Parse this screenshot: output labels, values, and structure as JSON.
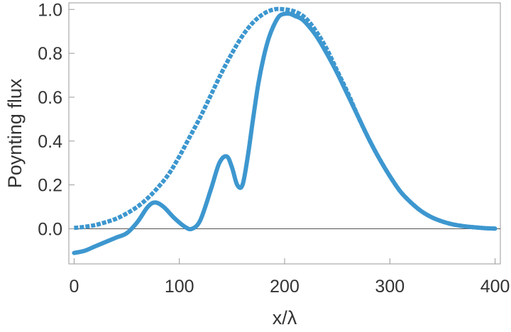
{
  "chart_data": {
    "type": "line",
    "title": "",
    "xlabel": "x/λ",
    "ylabel": "Poynting flux",
    "xlim": [
      -5,
      405
    ],
    "ylim": [
      -0.16,
      1.03
    ],
    "grid": false,
    "x_ticks": [
      0,
      100,
      200,
      300,
      400
    ],
    "x_tick_labels": [
      "0",
      "100",
      "200",
      "300",
      "400"
    ],
    "y_ticks": [
      0.0,
      0.2,
      0.4,
      0.6,
      0.8,
      1.0
    ],
    "y_tick_labels": [
      "0.0",
      "0.2",
      "0.4",
      "0.6",
      "0.8",
      "1.0"
    ],
    "color": "#3d97cf",
    "zero_line_color": "#555555",
    "series": [
      {
        "style": "dashed",
        "x": [
          0,
          10,
          20,
          30,
          40,
          50,
          60,
          70,
          80,
          90,
          100,
          110,
          120,
          130,
          140,
          150,
          160,
          170,
          180,
          190,
          200,
          210,
          220,
          230,
          240,
          250,
          260,
          270,
          280,
          290,
          300,
          310,
          320,
          330,
          340,
          350,
          360,
          370,
          380,
          390,
          400
        ],
        "y": [
          0.004,
          0.009,
          0.017,
          0.03,
          0.046,
          0.07,
          0.1,
          0.14,
          0.19,
          0.25,
          0.33,
          0.42,
          0.51,
          0.61,
          0.71,
          0.8,
          0.88,
          0.94,
          0.98,
          1.0,
          1.0,
          0.99,
          0.96,
          0.9,
          0.82,
          0.72,
          0.62,
          0.51,
          0.41,
          0.32,
          0.24,
          0.17,
          0.12,
          0.08,
          0.052,
          0.033,
          0.02,
          0.012,
          0.007,
          0.003,
          0.001
        ]
      },
      {
        "style": "solid",
        "x": [
          0,
          10,
          20,
          30,
          40,
          50,
          60,
          70,
          77,
          85,
          95,
          105,
          112,
          120,
          130,
          138,
          145,
          150,
          155,
          160,
          165,
          170,
          175,
          180,
          185,
          190,
          195,
          200,
          205,
          210,
          215,
          220,
          230,
          240,
          250,
          260,
          270,
          280,
          290,
          300,
          310,
          320,
          330,
          340,
          350,
          360,
          370,
          380,
          390,
          400
        ],
        "y": [
          -0.11,
          -0.1,
          -0.08,
          -0.06,
          -0.04,
          -0.02,
          0.03,
          0.1,
          0.12,
          0.1,
          0.05,
          0.01,
          0.0,
          0.04,
          0.18,
          0.3,
          0.33,
          0.28,
          0.2,
          0.2,
          0.33,
          0.5,
          0.66,
          0.78,
          0.87,
          0.93,
          0.97,
          0.98,
          0.98,
          0.97,
          0.96,
          0.94,
          0.88,
          0.8,
          0.71,
          0.61,
          0.51,
          0.41,
          0.32,
          0.24,
          0.17,
          0.12,
          0.08,
          0.052,
          0.033,
          0.02,
          0.012,
          0.007,
          0.003,
          0.001
        ]
      }
    ]
  }
}
